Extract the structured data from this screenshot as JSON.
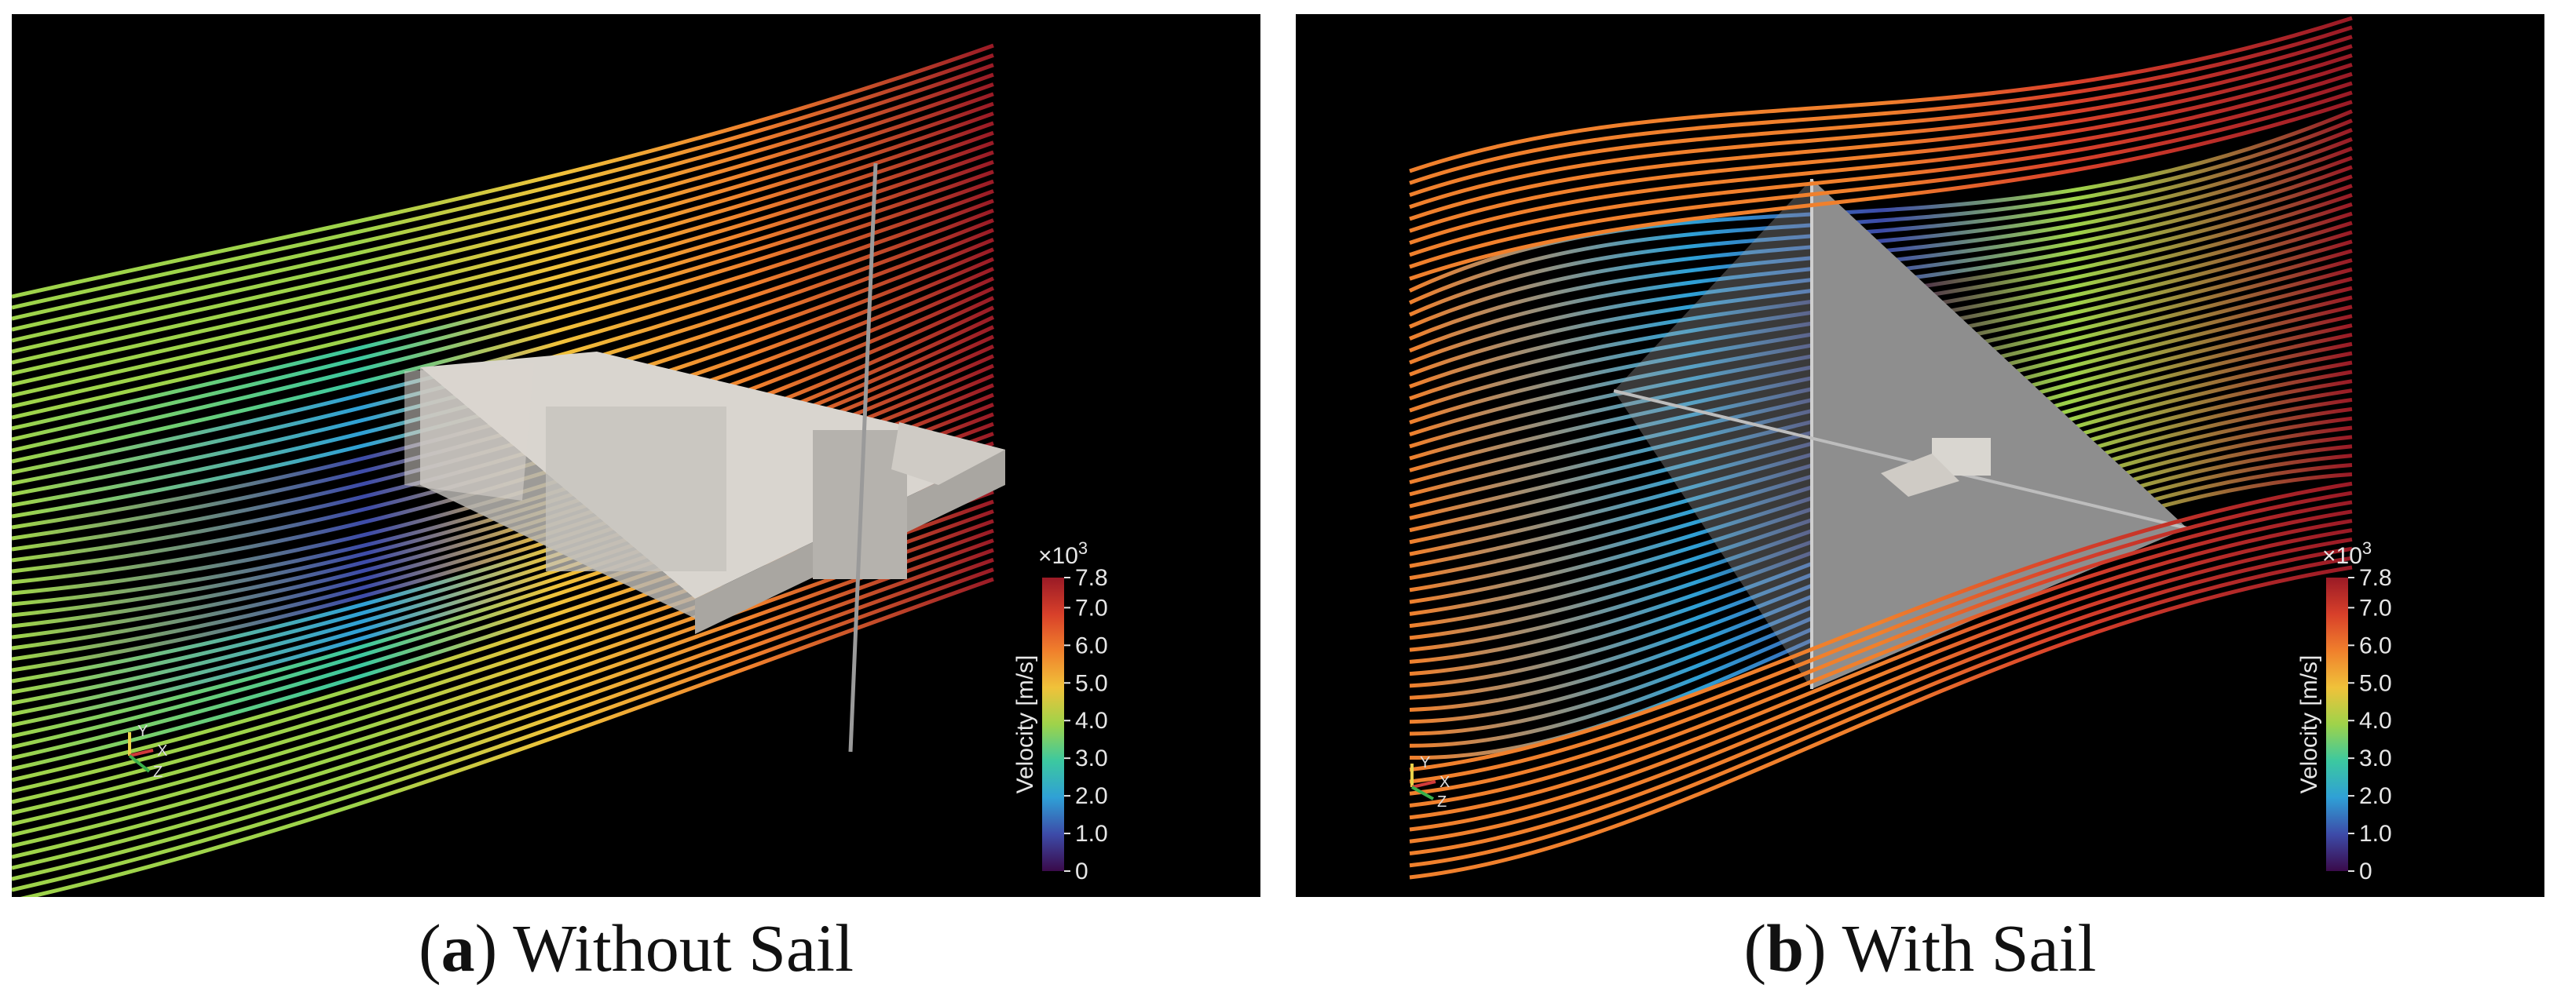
{
  "panels": [
    {
      "id": "a",
      "caption_letter": "a",
      "caption_text": "Without Sail",
      "colorbar": {
        "multiplier_base": "×10",
        "multiplier_exp": "3",
        "title": "Velocity [m/s]",
        "ticks": [
          "7.8",
          "7.0",
          "6.0",
          "5.0",
          "4.0",
          "3.0",
          "2.0",
          "1.0",
          "0"
        ]
      },
      "axes": {
        "y": "Y",
        "x": "X",
        "z": "Z"
      }
    },
    {
      "id": "b",
      "caption_letter": "b",
      "caption_text": "With Sail",
      "colorbar": {
        "multiplier_base": "×10",
        "multiplier_exp": "3",
        "title": "Velocity [m/s]",
        "ticks": [
          "7.8",
          "7.0",
          "6.0",
          "5.0",
          "4.0",
          "3.0",
          "2.0",
          "1.0",
          "0"
        ]
      },
      "axes": {
        "y": "Y",
        "x": "X",
        "z": "Z"
      }
    }
  ],
  "colors": {
    "background": "#000000",
    "body": "#c9c6c0",
    "sail": "#8e8e8e",
    "colormap": [
      "#3a0a4a",
      "#3d4ba8",
      "#2fa0d6",
      "#3cc8a0",
      "#9ed34a",
      "#f0c23a",
      "#f0802c",
      "#d8402a",
      "#9a1a26"
    ]
  }
}
